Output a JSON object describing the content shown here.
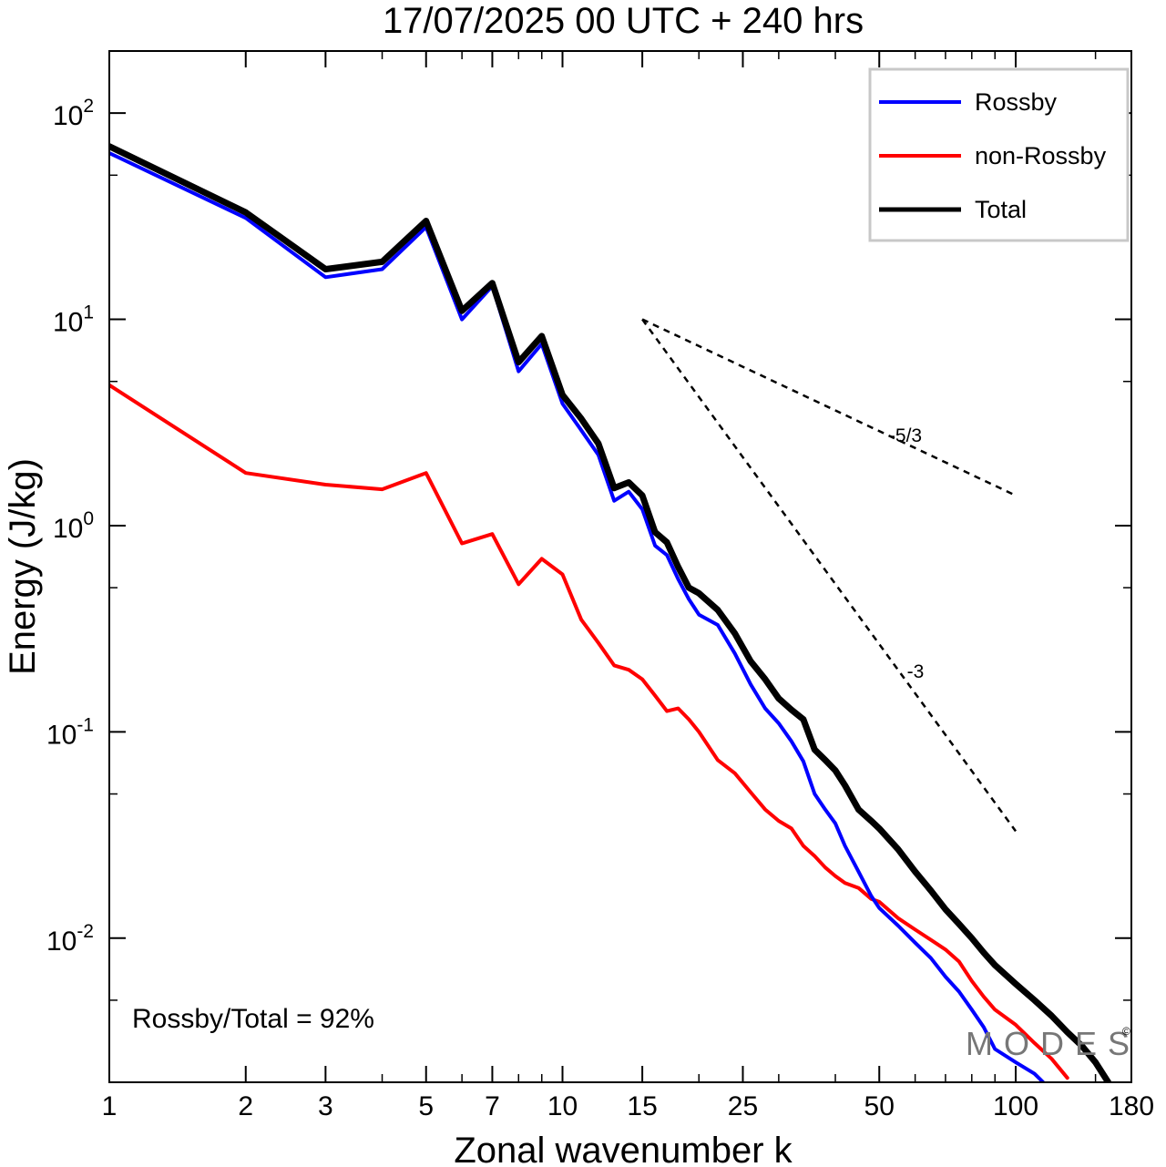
{
  "chart_data": {
    "type": "line",
    "title": "17/07/2025  00 UTC  + 240 hrs",
    "xlabel": "Zonal wavenumber k",
    "ylabel": "Energy (J/kg)",
    "x_scale": "log",
    "y_scale": "log",
    "xlim": [
      1,
      180
    ],
    "ylim": [
      0.002,
      200
    ],
    "x_ticks": [
      1,
      2,
      3,
      5,
      7,
      10,
      15,
      25,
      50,
      100,
      180
    ],
    "x_tick_labels": [
      "1",
      "2",
      "3",
      "5",
      "7",
      "10",
      "15",
      "25",
      "50",
      "100",
      "180"
    ],
    "y_ticks": [
      {
        "value": 100,
        "base": "10",
        "exp": "2"
      },
      {
        "value": 10,
        "base": "10",
        "exp": "1"
      },
      {
        "value": 1,
        "base": "10",
        "exp": "0"
      },
      {
        "value": 0.1,
        "base": "10",
        "exp": "-1"
      },
      {
        "value": 0.01,
        "base": "10",
        "exp": "-2"
      }
    ],
    "grid": false,
    "legend_position": "top-right",
    "series": [
      {
        "name": "Rossby",
        "color": "#0000ff",
        "x": [
          1,
          2,
          3,
          4,
          5,
          6,
          7,
          8,
          9,
          10,
          11,
          12,
          13,
          14,
          15,
          16,
          17,
          18,
          19,
          20,
          22,
          24,
          26,
          28,
          30,
          32,
          34,
          36,
          38,
          40,
          42,
          45,
          48,
          50,
          55,
          60,
          65,
          70,
          75,
          80,
          85,
          90,
          100,
          110,
          115
        ],
        "y": [
          64,
          31,
          16,
          17.5,
          28,
          10,
          14.5,
          5.6,
          7.6,
          3.9,
          2.9,
          2.2,
          1.32,
          1.46,
          1.2,
          0.8,
          0.72,
          0.55,
          0.44,
          0.37,
          0.33,
          0.24,
          0.17,
          0.13,
          0.11,
          0.09,
          0.072,
          0.05,
          0.042,
          0.036,
          0.028,
          0.021,
          0.016,
          0.014,
          0.0115,
          0.0095,
          0.008,
          0.0065,
          0.0055,
          0.0045,
          0.0037,
          0.0029,
          0.0025,
          0.0022,
          0.002
        ]
      },
      {
        "name": "non-Rossby",
        "color": "#ff0000",
        "x": [
          1,
          2,
          3,
          4,
          5,
          6,
          7,
          8,
          9,
          10,
          11,
          12,
          13,
          14,
          15,
          16,
          17,
          18,
          19,
          20,
          22,
          24,
          26,
          28,
          30,
          32,
          34,
          36,
          38,
          40,
          42,
          45,
          48,
          50,
          55,
          60,
          65,
          70,
          75,
          80,
          85,
          90,
          100,
          110,
          120,
          130
        ],
        "y": [
          4.8,
          1.8,
          1.58,
          1.5,
          1.8,
          0.82,
          0.91,
          0.52,
          0.69,
          0.58,
          0.35,
          0.27,
          0.21,
          0.2,
          0.18,
          0.15,
          0.126,
          0.13,
          0.115,
          0.1,
          0.073,
          0.063,
          0.051,
          0.042,
          0.037,
          0.034,
          0.028,
          0.025,
          0.022,
          0.02,
          0.0185,
          0.0175,
          0.0155,
          0.015,
          0.0125,
          0.011,
          0.0098,
          0.0088,
          0.0077,
          0.0062,
          0.0052,
          0.0045,
          0.0038,
          0.0031,
          0.0026,
          0.0021
        ]
      },
      {
        "name": "Total",
        "color": "#000000",
        "x": [
          1,
          2,
          3,
          4,
          5,
          6,
          7,
          8,
          9,
          10,
          11,
          12,
          13,
          14,
          15,
          16,
          17,
          18,
          19,
          20,
          22,
          24,
          26,
          28,
          30,
          32,
          34,
          36,
          38,
          40,
          42,
          45,
          48,
          50,
          55,
          60,
          65,
          70,
          75,
          80,
          85,
          90,
          100,
          110,
          120,
          130,
          140,
          150,
          160
        ],
        "y": [
          69,
          33,
          17.5,
          19,
          30,
          11,
          15,
          6.2,
          8.3,
          4.3,
          3.3,
          2.5,
          1.52,
          1.62,
          1.4,
          0.93,
          0.83,
          0.63,
          0.5,
          0.47,
          0.39,
          0.3,
          0.22,
          0.18,
          0.145,
          0.128,
          0.115,
          0.082,
          0.073,
          0.065,
          0.055,
          0.042,
          0.037,
          0.034,
          0.027,
          0.021,
          0.017,
          0.0138,
          0.0117,
          0.01,
          0.0085,
          0.0074,
          0.006,
          0.005,
          0.0042,
          0.0035,
          0.003,
          0.0025,
          0.002
        ]
      }
    ],
    "reference_lines": [
      {
        "label": "-5/3",
        "x": [
          15,
          100
        ],
        "y": [
          10,
          1.4
        ]
      },
      {
        "label": "-3",
        "x": [
          15,
          100
        ],
        "y": [
          10,
          0.033
        ]
      }
    ],
    "annotation": "Rossby/Total = 92%",
    "watermark": "MODES",
    "watermark_mark": "©"
  }
}
